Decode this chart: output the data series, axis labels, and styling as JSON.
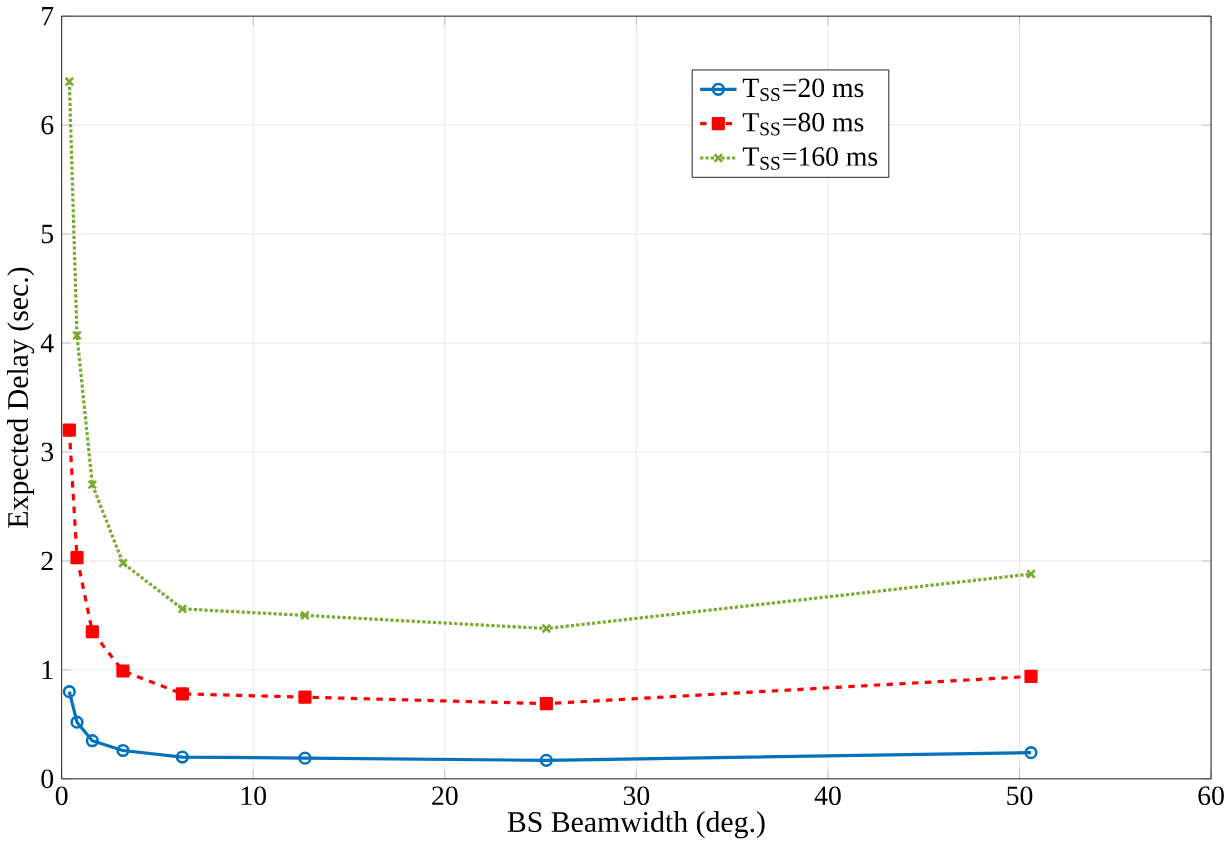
{
  "chart_data": {
    "type": "line",
    "xlabel": "BS Beamwidth (deg.)",
    "ylabel": "Expected Delay (sec.)",
    "x": [
      0.4,
      0.8,
      1.6,
      3.2,
      6.3,
      12.7,
      25.3,
      50.6
    ],
    "series": [
      {
        "name": "T$_{SS}$=20 ms",
        "color": "#0072bd",
        "marker": "circle",
        "line_style": "solid",
        "values": [
          0.8,
          0.52,
          0.35,
          0.26,
          0.2,
          0.19,
          0.17,
          0.24
        ]
      },
      {
        "name": "T$_{SS}$=80 ms",
        "color": "#ff0000",
        "marker": "square",
        "line_style": "dashed",
        "values": [
          3.2,
          2.03,
          1.35,
          0.99,
          0.78,
          0.75,
          0.69,
          0.94
        ]
      },
      {
        "name": "T$_{SS}$=160 ms",
        "color": "#77ac30",
        "marker": "cross",
        "line_style": "dotted",
        "values": [
          6.4,
          4.07,
          2.7,
          1.98,
          1.56,
          1.5,
          1.38,
          1.88
        ]
      }
    ],
    "xlim": [
      0,
      60
    ],
    "ylim": [
      0,
      7
    ],
    "xticks": [
      0,
      10,
      20,
      30,
      40,
      50,
      60
    ],
    "yticks": [
      0,
      1,
      2,
      3,
      4,
      5,
      6,
      7
    ],
    "grid": true,
    "legend": "top right"
  }
}
